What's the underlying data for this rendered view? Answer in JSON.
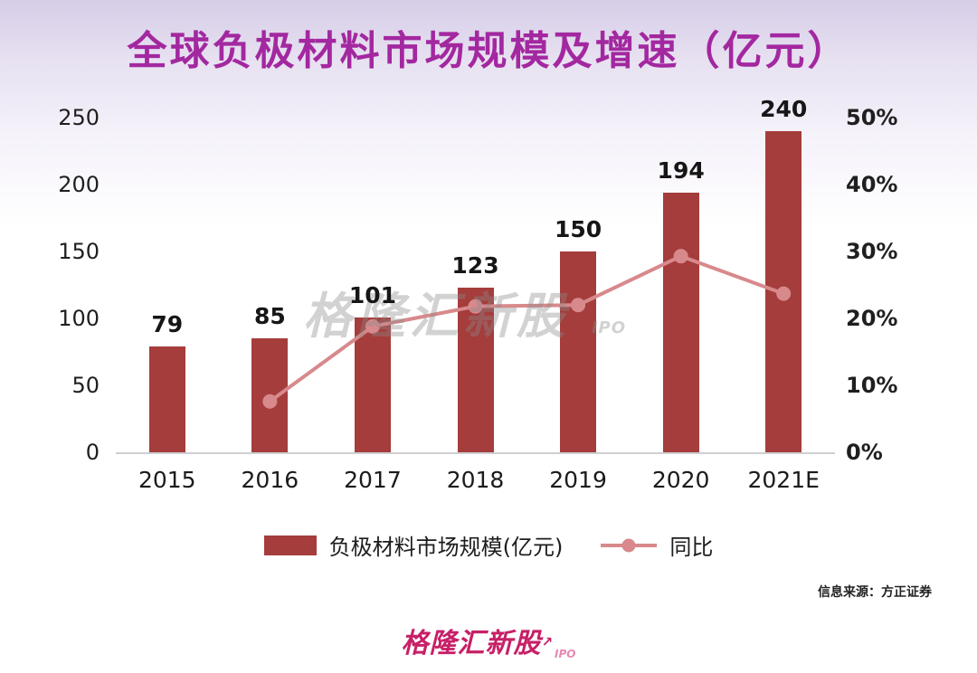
{
  "page": {
    "title": "全球负极材料市场规模及增速（亿元）",
    "watermark": {
      "text": "格隆汇新股",
      "sub": "IPO"
    },
    "source": "信息来源：方正证券",
    "footer": {
      "logo": "格隆汇新股",
      "arrow": "↗",
      "sub": "IPO"
    }
  },
  "colors": {
    "bar": "#A43D3B",
    "line": "#D8898C",
    "title": "#A328A0",
    "logo": "#C72067",
    "axis_text": "#1F1F1F"
  },
  "chart_data": {
    "type": "bar",
    "title": "全球负极材料市场规模及增速（亿元）",
    "categories": [
      "2015",
      "2016",
      "2017",
      "2018",
      "2019",
      "2020",
      "2021E"
    ],
    "series": [
      {
        "name": "负极材料市场规模(亿元)",
        "type": "bar",
        "axis": "left",
        "values": [
          79,
          85,
          101,
          123,
          150,
          194,
          240
        ]
      },
      {
        "name": "同比",
        "type": "line",
        "axis": "right",
        "values": [
          null,
          7.6,
          18.8,
          21.8,
          22.0,
          29.3,
          23.7
        ]
      }
    ],
    "left_axis": {
      "min": 0,
      "max": 250,
      "ticks": [
        250,
        200,
        150,
        100,
        50,
        0
      ]
    },
    "right_axis": {
      "min": 0,
      "max": 50,
      "ticks": [
        "50%",
        "40%",
        "30%",
        "20%",
        "10%",
        "0%"
      ]
    },
    "data_labels": [
      79,
      85,
      101,
      123,
      150,
      194,
      240
    ],
    "grid": false,
    "legend_position": "bottom"
  }
}
